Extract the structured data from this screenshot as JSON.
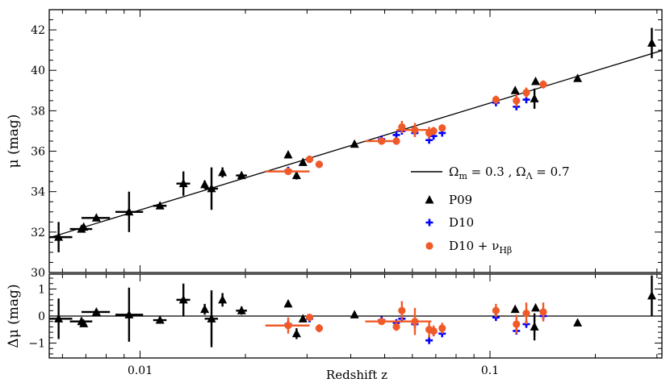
{
  "chart_data": {
    "type": "scatter",
    "xlabel": "Redshift z",
    "x_scale": "log",
    "xlim": [
      0.0055,
      0.31
    ],
    "x_ticks": [
      {
        "value": 0.01,
        "label": "0.01"
      },
      {
        "value": 0.1,
        "label": "0.1"
      }
    ],
    "panels": [
      {
        "id": "top",
        "ylabel_main": "μ",
        "ylabel_unit": "(mag)",
        "ylim": [
          30,
          43
        ],
        "y_ticks": [
          30,
          32,
          34,
          36,
          38,
          40,
          42
        ],
        "model_line": {
          "label": {
            "om": "Ω",
            "om_sub": "m",
            "om_val": "= 0.3 ,",
            "ol": "Ω",
            "ol_sub": "Λ",
            "ol_val": "= 0.7"
          },
          "points": [
            [
              0.0055,
              31.72
            ],
            [
              0.31,
              40.98
            ]
          ]
        }
      },
      {
        "id": "bottom",
        "ylabel_main": "Δμ",
        "ylabel_unit": "(mag)",
        "ylim": [
          -1.55,
          1.55
        ],
        "y_ticks": [
          -1,
          0,
          1
        ]
      }
    ],
    "legend": {
      "position": "right-center",
      "entries": [
        {
          "name": "P09",
          "marker": "triangle",
          "color": "#000000"
        },
        {
          "name": "D10",
          "marker": "plus",
          "color": "#0000ff"
        },
        {
          "name": "D10 + ν",
          "sub": "Hβ",
          "marker": "circle",
          "color": "#f05a28"
        }
      ]
    },
    "series": [
      {
        "name": "P09",
        "marker": "triangle",
        "color": "#000000",
        "points": [
          {
            "z": 0.00585,
            "mu": 31.75,
            "mu_err": 0.75,
            "z_lo": 0.0053,
            "z_hi": 0.0064,
            "dmu": -0.1,
            "dmu_err": 0.75
          },
          {
            "z": 0.0068,
            "mu": 32.15,
            "mu_err": 0.15,
            "z_lo": 0.0063,
            "z_hi": 0.0073,
            "dmu": -0.2,
            "dmu_err": 0.15
          },
          {
            "z": 0.0069,
            "mu": 32.25,
            "mu_err": 0.1,
            "dmu": -0.28,
            "dmu_err": 0.1
          },
          {
            "z": 0.0075,
            "mu": 32.7,
            "mu_err": 0.1,
            "z_lo": 0.0068,
            "z_hi": 0.0082,
            "dmu": 0.15,
            "dmu_err": 0.1
          },
          {
            "z": 0.0093,
            "mu": 33.0,
            "mu_err": 1.0,
            "z_lo": 0.0085,
            "z_hi": 0.0102,
            "dmu": 0.05,
            "dmu_err": 1.0
          },
          {
            "z": 0.0114,
            "mu": 33.3,
            "mu_err": 0.1,
            "z_lo": 0.0109,
            "z_hi": 0.0119,
            "dmu": -0.15,
            "dmu_err": 0.1
          },
          {
            "z": 0.0133,
            "mu": 34.4,
            "mu_err": 0.6,
            "z_lo": 0.0127,
            "z_hi": 0.0139,
            "dmu": 0.6,
            "dmu_err": 0.6
          },
          {
            "z": 0.0153,
            "mu": 34.35,
            "mu_err": 0.2,
            "dmu": 0.25,
            "dmu_err": 0.2
          },
          {
            "z": 0.016,
            "mu": 34.15,
            "mu_err": 1.05,
            "z_lo": 0.0153,
            "z_hi": 0.0167,
            "dmu": -0.1,
            "dmu_err": 1.05
          },
          {
            "z": 0.0172,
            "mu": 34.95,
            "mu_err": 0.25,
            "dmu": 0.6,
            "dmu_err": 0.25
          },
          {
            "z": 0.0195,
            "mu": 34.8,
            "mu_err": 0.15,
            "z_lo": 0.0188,
            "z_hi": 0.0202,
            "dmu": 0.2,
            "dmu_err": 0.15
          },
          {
            "z": 0.0265,
            "mu": 35.82,
            "dmu": 0.45
          },
          {
            "z": 0.028,
            "mu": 34.8,
            "mu_err": 0.2,
            "dmu": -0.65,
            "dmu_err": 0.2
          },
          {
            "z": 0.0292,
            "mu": 35.45,
            "dmu": -0.1
          },
          {
            "z": 0.041,
            "mu": 36.35,
            "dmu": 0.05
          },
          {
            "z": 0.118,
            "mu": 39.0,
            "dmu": 0.25
          },
          {
            "z": 0.135,
            "mu": 39.45,
            "dmu": 0.3
          },
          {
            "z": 0.134,
            "mu": 38.6,
            "mu_err": 0.5,
            "dmu": -0.4,
            "dmu_err": 0.5
          },
          {
            "z": 0.178,
            "mu": 39.6,
            "dmu": -0.25
          },
          {
            "z": 0.29,
            "mu": 41.35,
            "mu_err": 0.75,
            "dmu": 0.75,
            "dmu_err": 0.75
          }
        ]
      },
      {
        "name": "D10",
        "marker": "plus",
        "color": "#0000ff",
        "points": [
          {
            "z": 0.0265,
            "mu": 35.05,
            "dmu": -0.3
          },
          {
            "z": 0.0305,
            "mu": 35.6,
            "dmu": -0.1
          },
          {
            "z": 0.0325,
            "mu": 35.35,
            "dmu": -0.45
          },
          {
            "z": 0.049,
            "mu": 36.6,
            "dmu": -0.15
          },
          {
            "z": 0.054,
            "mu": 36.8,
            "dmu": -0.25
          },
          {
            "z": 0.056,
            "mu": 37.0,
            "dmu": -0.1
          },
          {
            "z": 0.061,
            "mu": 36.9,
            "dmu": -0.3
          },
          {
            "z": 0.067,
            "mu": 36.55,
            "dmu": -0.9
          },
          {
            "z": 0.069,
            "mu": 36.75,
            "dmu": -0.6
          },
          {
            "z": 0.073,
            "mu": 36.9,
            "dmu": -0.65
          },
          {
            "z": 0.104,
            "mu": 38.4,
            "dmu": -0.05
          },
          {
            "z": 0.119,
            "mu": 38.2,
            "dmu": -0.55
          },
          {
            "z": 0.127,
            "mu": 38.55,
            "dmu": -0.3
          },
          {
            "z": 0.142,
            "mu": 39.3,
            "dmu": 0.0
          }
        ]
      },
      {
        "name": "D10 + νHβ",
        "marker": "circle",
        "color": "#f05a28",
        "points": [
          {
            "z": 0.0265,
            "mu": 35.0,
            "z_lo": 0.0228,
            "z_hi": 0.0305,
            "dmu": -0.35,
            "dmu_err": 0.3
          },
          {
            "z": 0.0305,
            "mu": 35.6,
            "dmu": -0.05
          },
          {
            "z": 0.0325,
            "mu": 35.35,
            "dmu": -0.45,
            "dmu_err": 0.15
          },
          {
            "z": 0.049,
            "mu": 36.5,
            "z_lo": 0.044,
            "z_hi": 0.054,
            "dmu": -0.2
          },
          {
            "z": 0.054,
            "mu": 36.5,
            "mu_err": 0.15,
            "dmu": -0.4,
            "dmu_err": 0.15
          },
          {
            "z": 0.056,
            "mu": 37.2,
            "mu_err": 0.3,
            "dmu": 0.2,
            "dmu_err": 0.35
          },
          {
            "z": 0.061,
            "mu": 37.05,
            "mu_err": 0.35,
            "z_lo": 0.054,
            "z_hi": 0.068,
            "dmu": -0.2,
            "dmu_err": 0.5
          },
          {
            "z": 0.067,
            "mu": 36.9,
            "mu_err": 0.3,
            "dmu": -0.5,
            "dmu_err": 0.3
          },
          {
            "z": 0.069,
            "mu": 37.0,
            "mu_err": 0.2,
            "dmu": -0.55,
            "dmu_err": 0.2
          },
          {
            "z": 0.073,
            "mu": 37.15,
            "mu_err": 0.15,
            "dmu": -0.45,
            "dmu_err": 0.2
          },
          {
            "z": 0.104,
            "mu": 38.55,
            "mu_err": 0.2,
            "dmu": 0.2,
            "dmu_err": 0.25
          },
          {
            "z": 0.119,
            "mu": 38.5,
            "mu_err": 0.3,
            "dmu": -0.3,
            "dmu_err": 0.35
          },
          {
            "z": 0.127,
            "mu": 38.9,
            "mu_err": 0.25,
            "dmu": 0.1,
            "dmu_err": 0.4
          },
          {
            "z": 0.142,
            "mu": 39.3,
            "mu_err": 0.2,
            "dmu": 0.15,
            "dmu_err": 0.35
          }
        ]
      }
    ]
  }
}
